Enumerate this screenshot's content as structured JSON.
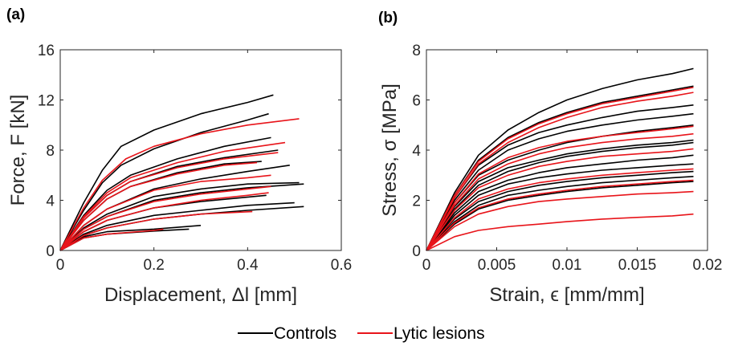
{
  "legend": {
    "controls_label": "Controls",
    "lesions_label": "Lytic lesions",
    "controls_color": "#000000",
    "lesions_color": "#e8141a"
  },
  "chart_data": [
    {
      "type": "line",
      "panel_label": "(a)",
      "xlabel": "Displacement, Δl [mm]",
      "ylabel": "Force, F [kN]",
      "xlim": [
        0,
        0.6
      ],
      "ylim": [
        0,
        16
      ],
      "xticks": [
        "0",
        "0.2",
        "0.4",
        "0.6"
      ],
      "yticks": [
        "0",
        "4",
        "8",
        "12",
        "16"
      ],
      "grid": false,
      "legend_position": "bottom-center",
      "series": [
        {
          "group": "Controls",
          "x": [
            0,
            0.05,
            0.09,
            0.13,
            0.2,
            0.3,
            0.4,
            0.455
          ],
          "y": [
            0,
            3.8,
            6.4,
            8.3,
            9.6,
            10.9,
            11.8,
            12.4
          ]
        },
        {
          "group": "Controls",
          "x": [
            0,
            0.05,
            0.09,
            0.13,
            0.2,
            0.3,
            0.4,
            0.445
          ],
          "y": [
            0,
            3.2,
            5.4,
            6.8,
            8.1,
            9.4,
            10.4,
            10.9
          ]
        },
        {
          "group": "Controls",
          "x": [
            0,
            0.05,
            0.1,
            0.15,
            0.25,
            0.35,
            0.45
          ],
          "y": [
            0,
            2.8,
            4.8,
            6.0,
            7.3,
            8.3,
            9.0
          ]
        },
        {
          "group": "Controls",
          "x": [
            0,
            0.05,
            0.1,
            0.15,
            0.25,
            0.35,
            0.465
          ],
          "y": [
            0,
            2.6,
            4.4,
            5.5,
            6.7,
            7.4,
            8.0
          ]
        },
        {
          "group": "Controls",
          "x": [
            0,
            0.05,
            0.1,
            0.15,
            0.25,
            0.35,
            0.43
          ],
          "y": [
            0,
            2.4,
            4.1,
            5.1,
            6.2,
            6.9,
            7.1
          ]
        },
        {
          "group": "Controls",
          "x": [
            0,
            0.05,
            0.1,
            0.2,
            0.3,
            0.4,
            0.49
          ],
          "y": [
            0,
            2.0,
            3.3,
            4.9,
            5.7,
            6.3,
            6.8
          ]
        },
        {
          "group": "Controls",
          "x": [
            0,
            0.05,
            0.1,
            0.2,
            0.3,
            0.4,
            0.51
          ],
          "y": [
            0,
            1.8,
            2.9,
            4.3,
            4.9,
            5.3,
            5.4
          ]
        },
        {
          "group": "Controls",
          "x": [
            0,
            0.05,
            0.1,
            0.2,
            0.3,
            0.4,
            0.52
          ],
          "y": [
            0,
            1.7,
            2.7,
            4.0,
            4.6,
            5.0,
            5.3
          ]
        },
        {
          "group": "Controls",
          "x": [
            0,
            0.05,
            0.1,
            0.2,
            0.3,
            0.44
          ],
          "y": [
            0,
            1.5,
            2.4,
            3.4,
            3.9,
            4.4
          ]
        },
        {
          "group": "Controls",
          "x": [
            0,
            0.05,
            0.1,
            0.2,
            0.3,
            0.4,
            0.5
          ],
          "y": [
            0,
            1.3,
            2.0,
            2.8,
            3.2,
            3.6,
            3.8
          ]
        },
        {
          "group": "Controls",
          "x": [
            0,
            0.05,
            0.1,
            0.2,
            0.3,
            0.4,
            0.52
          ],
          "y": [
            0,
            1.2,
            1.8,
            2.5,
            2.9,
            3.2,
            3.5
          ]
        },
        {
          "group": "Controls",
          "x": [
            0,
            0.05,
            0.1,
            0.2,
            0.3
          ],
          "y": [
            0,
            1.1,
            1.5,
            1.7,
            2.0
          ]
        },
        {
          "group": "Controls",
          "x": [
            0,
            0.05,
            0.1,
            0.2,
            0.275
          ],
          "y": [
            0,
            1.0,
            1.3,
            1.55,
            1.7
          ]
        },
        {
          "group": "Lytic lesions",
          "x": [
            0,
            0.05,
            0.09,
            0.14,
            0.2,
            0.3,
            0.4,
            0.51
          ],
          "y": [
            0,
            3.4,
            5.6,
            7.3,
            8.3,
            9.3,
            10.0,
            10.5
          ]
        },
        {
          "group": "Lytic lesions",
          "x": [
            0,
            0.05,
            0.1,
            0.15,
            0.25,
            0.35,
            0.48
          ],
          "y": [
            0,
            2.7,
            4.6,
            5.8,
            7.0,
            7.9,
            8.6
          ]
        },
        {
          "group": "Lytic lesions",
          "x": [
            0,
            0.05,
            0.1,
            0.15,
            0.25,
            0.35,
            0.465
          ],
          "y": [
            0,
            2.6,
            4.4,
            5.5,
            6.6,
            7.3,
            7.8
          ]
        },
        {
          "group": "Lytic lesions",
          "x": [
            0,
            0.05,
            0.1,
            0.15,
            0.25,
            0.35,
            0.42
          ],
          "y": [
            0,
            2.4,
            4.1,
            5.1,
            6.1,
            6.8,
            7.0
          ]
        },
        {
          "group": "Lytic lesions",
          "x": [
            0,
            0.05,
            0.1,
            0.2,
            0.3,
            0.4,
            0.45
          ],
          "y": [
            0,
            2.0,
            3.3,
            4.8,
            5.5,
            5.8,
            6.0
          ]
        },
        {
          "group": "Lytic lesions",
          "x": [
            0,
            0.05,
            0.1,
            0.2,
            0.3,
            0.4,
            0.45
          ],
          "y": [
            0,
            1.7,
            2.7,
            3.9,
            4.5,
            4.9,
            5.1
          ]
        },
        {
          "group": "Lytic lesions",
          "x": [
            0,
            0.05,
            0.1,
            0.2,
            0.3,
            0.4,
            0.445
          ],
          "y": [
            0,
            1.5,
            2.4,
            3.4,
            4.0,
            4.4,
            4.6
          ]
        },
        {
          "group": "Lytic lesions",
          "x": [
            0,
            0.05,
            0.1,
            0.2,
            0.3,
            0.41
          ],
          "y": [
            0,
            1.2,
            1.8,
            2.5,
            2.9,
            3.1
          ]
        },
        {
          "group": "Lytic lesions",
          "x": [
            0,
            0.05,
            0.1,
            0.2,
            0.22
          ],
          "y": [
            0,
            1.0,
            1.3,
            1.6,
            1.7
          ]
        }
      ]
    },
    {
      "type": "line",
      "panel_label": "(b)",
      "xlabel": "Strain, ϵ [mm/mm]",
      "ylabel": "Stress, σ [MPa]",
      "xlim": [
        0,
        0.02
      ],
      "ylim": [
        0,
        8
      ],
      "xticks": [
        "0",
        "0.005",
        "0.01",
        "0.015",
        "0.02"
      ],
      "yticks": [
        "0",
        "2",
        "4",
        "6",
        "8"
      ],
      "grid": false,
      "legend_position": "bottom-center",
      "series": [
        {
          "group": "Controls",
          "x": [
            0,
            0.002,
            0.0037,
            0.0058,
            0.008,
            0.01,
            0.0125,
            0.015,
            0.0175,
            0.019
          ],
          "y": [
            0,
            2.3,
            3.8,
            4.8,
            5.5,
            6.0,
            6.45,
            6.8,
            7.05,
            7.25
          ]
        },
        {
          "group": "Controls",
          "x": [
            0,
            0.002,
            0.0037,
            0.0058,
            0.008,
            0.01,
            0.0125,
            0.015,
            0.0175,
            0.019
          ],
          "y": [
            0,
            2.2,
            3.6,
            4.5,
            5.1,
            5.5,
            5.9,
            6.15,
            6.4,
            6.55
          ]
        },
        {
          "group": "Controls",
          "x": [
            0,
            0.002,
            0.0037,
            0.0058,
            0.008,
            0.01,
            0.0125,
            0.015,
            0.0175,
            0.019
          ],
          "y": [
            0,
            2.1,
            3.4,
            4.2,
            4.7,
            5.0,
            5.3,
            5.55,
            5.7,
            5.8
          ]
        },
        {
          "group": "Controls",
          "x": [
            0,
            0.002,
            0.0037,
            0.0058,
            0.008,
            0.01,
            0.0125,
            0.015,
            0.0175,
            0.019
          ],
          "y": [
            0,
            2.0,
            3.2,
            4.0,
            4.45,
            4.75,
            5.0,
            5.2,
            5.35,
            5.45
          ]
        },
        {
          "group": "Controls",
          "x": [
            0,
            0.002,
            0.0037,
            0.0058,
            0.008,
            0.01,
            0.0125,
            0.015,
            0.0175,
            0.019
          ],
          "y": [
            0,
            1.9,
            3.0,
            3.6,
            4.0,
            4.3,
            4.55,
            4.75,
            4.9,
            5.0
          ]
        },
        {
          "group": "Controls",
          "x": [
            0,
            0.002,
            0.0037,
            0.0058,
            0.008,
            0.01,
            0.0125,
            0.015,
            0.0175,
            0.019
          ],
          "y": [
            0,
            1.75,
            2.75,
            3.3,
            3.6,
            3.85,
            4.05,
            4.2,
            4.3,
            4.4
          ]
        },
        {
          "group": "Controls",
          "x": [
            0,
            0.002,
            0.0037,
            0.0058,
            0.008,
            0.01,
            0.0125,
            0.015,
            0.0175,
            0.019
          ],
          "y": [
            0,
            1.65,
            2.6,
            3.15,
            3.5,
            3.75,
            3.95,
            4.1,
            4.2,
            4.3
          ]
        },
        {
          "group": "Controls",
          "x": [
            0,
            0.002,
            0.0037,
            0.0058,
            0.008,
            0.01,
            0.0125,
            0.015,
            0.0175,
            0.019
          ],
          "y": [
            0,
            1.5,
            2.35,
            2.8,
            3.1,
            3.3,
            3.45,
            3.6,
            3.7,
            3.8
          ]
        },
        {
          "group": "Controls",
          "x": [
            0,
            0.002,
            0.0037,
            0.0058,
            0.008,
            0.01,
            0.0125,
            0.015,
            0.0175,
            0.019
          ],
          "y": [
            0,
            1.4,
            2.2,
            2.65,
            2.9,
            3.05,
            3.2,
            3.3,
            3.4,
            3.45
          ]
        },
        {
          "group": "Controls",
          "x": [
            0,
            0.002,
            0.0037,
            0.0058,
            0.008,
            0.01,
            0.0125,
            0.015,
            0.0175,
            0.019
          ],
          "y": [
            0,
            1.25,
            1.95,
            2.35,
            2.6,
            2.75,
            2.9,
            3.0,
            3.1,
            3.15
          ]
        },
        {
          "group": "Controls",
          "x": [
            0,
            0.002,
            0.0037,
            0.0058,
            0.008,
            0.01,
            0.0125,
            0.015,
            0.0175,
            0.019
          ],
          "y": [
            0,
            1.15,
            1.8,
            2.2,
            2.4,
            2.55,
            2.7,
            2.8,
            2.9,
            2.95
          ]
        },
        {
          "group": "Controls",
          "x": [
            0,
            0.002,
            0.0037,
            0.0058,
            0.008,
            0.01,
            0.0125,
            0.015,
            0.0175,
            0.019
          ],
          "y": [
            0,
            1.05,
            1.65,
            2.0,
            2.2,
            2.35,
            2.5,
            2.6,
            2.7,
            2.75
          ]
        },
        {
          "group": "Lytic lesions",
          "x": [
            0,
            0.002,
            0.0037,
            0.0058,
            0.008,
            0.01,
            0.0125,
            0.015,
            0.0175,
            0.019
          ],
          "y": [
            0,
            2.2,
            3.55,
            4.45,
            5.05,
            5.45,
            5.85,
            6.1,
            6.35,
            6.5
          ]
        },
        {
          "group": "Lytic lesions",
          "x": [
            0,
            0.002,
            0.0037,
            0.0058,
            0.008,
            0.01,
            0.0125,
            0.015,
            0.0175,
            0.019
          ],
          "y": [
            0,
            2.1,
            3.45,
            4.3,
            4.9,
            5.3,
            5.7,
            5.95,
            6.15,
            6.3
          ]
        },
        {
          "group": "Lytic lesions",
          "x": [
            0,
            0.002,
            0.0037,
            0.0058,
            0.008,
            0.01,
            0.0125,
            0.015,
            0.0175,
            0.019
          ],
          "y": [
            0,
            1.9,
            3.05,
            3.7,
            4.1,
            4.35,
            4.55,
            4.7,
            4.85,
            4.95
          ]
        },
        {
          "group": "Lytic lesions",
          "x": [
            0,
            0.002,
            0.0037,
            0.0058,
            0.008,
            0.01,
            0.0125,
            0.015,
            0.0175,
            0.019
          ],
          "y": [
            0,
            1.8,
            2.85,
            3.45,
            3.85,
            4.1,
            4.3,
            4.45,
            4.55,
            4.65
          ]
        },
        {
          "group": "Lytic lesions",
          "x": [
            0,
            0.002,
            0.0037,
            0.0058,
            0.008,
            0.01,
            0.0125,
            0.015,
            0.0175,
            0.019
          ],
          "y": [
            0,
            1.6,
            2.5,
            3.0,
            3.35,
            3.55,
            3.75,
            3.85,
            3.95,
            4.05
          ]
        },
        {
          "group": "Lytic lesions",
          "x": [
            0,
            0.002,
            0.0037,
            0.0058,
            0.008,
            0.01,
            0.0125,
            0.015,
            0.0175,
            0.019
          ],
          "y": [
            0,
            1.3,
            2.05,
            2.45,
            2.7,
            2.85,
            3.0,
            3.1,
            3.2,
            3.25
          ]
        },
        {
          "group": "Lytic lesions",
          "x": [
            0,
            0.002,
            0.0037,
            0.0058,
            0.008,
            0.01,
            0.0125,
            0.015,
            0.0175,
            0.019
          ],
          "y": [
            0,
            1.1,
            1.7,
            2.05,
            2.25,
            2.4,
            2.55,
            2.65,
            2.75,
            2.8
          ]
        },
        {
          "group": "Lytic lesions",
          "x": [
            0,
            0.002,
            0.0037,
            0.0058,
            0.008,
            0.01,
            0.0125,
            0.015,
            0.0175,
            0.019
          ],
          "y": [
            0,
            0.95,
            1.45,
            1.75,
            1.95,
            2.05,
            2.15,
            2.25,
            2.3,
            2.35
          ]
        },
        {
          "group": "Lytic lesions",
          "x": [
            0,
            0.002,
            0.0037,
            0.0058,
            0.008,
            0.01,
            0.0125,
            0.015,
            0.0175,
            0.019
          ],
          "y": [
            0,
            0.55,
            0.8,
            0.95,
            1.05,
            1.15,
            1.25,
            1.32,
            1.38,
            1.45
          ]
        }
      ]
    }
  ]
}
